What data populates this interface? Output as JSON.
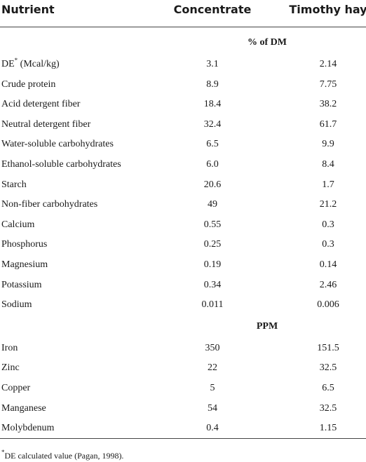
{
  "table": {
    "header": [
      "Nutrient",
      "Concentrate",
      "Timothy hay"
    ],
    "sections": [
      {
        "title": "% of DM",
        "rows": [
          [
            {
              "label": "DE",
              "sup": "*",
              "unit": "(Mcal/kg)"
            },
            "3.1",
            "2.14"
          ],
          [
            "Crude protein",
            "8.9",
            "7.75"
          ],
          [
            "Acid detergent fiber",
            "18.4",
            "38.2"
          ],
          [
            "Neutral detergent fiber",
            "32.4",
            "61.7"
          ],
          [
            "Water-soluble carbohydrates",
            "6.5",
            "9.9"
          ],
          [
            "Ethanol-soluble carbohydrates",
            "6.0",
            "8.4"
          ],
          [
            "Starch",
            "20.6",
            "1.7"
          ],
          [
            "Non-fiber carbohydrates",
            "49",
            "21.2"
          ],
          [
            "Calcium",
            "0.55",
            "0.3"
          ],
          [
            "Phosphorus",
            "0.25",
            "0.3"
          ],
          [
            "Magnesium",
            "0.19",
            "0.14"
          ],
          [
            "Potassium",
            "0.34",
            "2.46"
          ],
          [
            "Sodium",
            "0.011",
            "0.006"
          ]
        ]
      },
      {
        "title": "PPM",
        "rows": [
          [
            "Iron",
            "350",
            "151.5"
          ],
          [
            "Zinc",
            "22",
            "32.5"
          ],
          [
            "Copper",
            "5",
            "6.5"
          ],
          [
            "Manganese",
            "54",
            "32.5"
          ],
          [
            "Molybdenum",
            "0.4",
            "1.15"
          ]
        ]
      }
    ],
    "footnote": {
      "sup": "*",
      "text": "DE calculated value (Pagan, 1998)."
    }
  }
}
